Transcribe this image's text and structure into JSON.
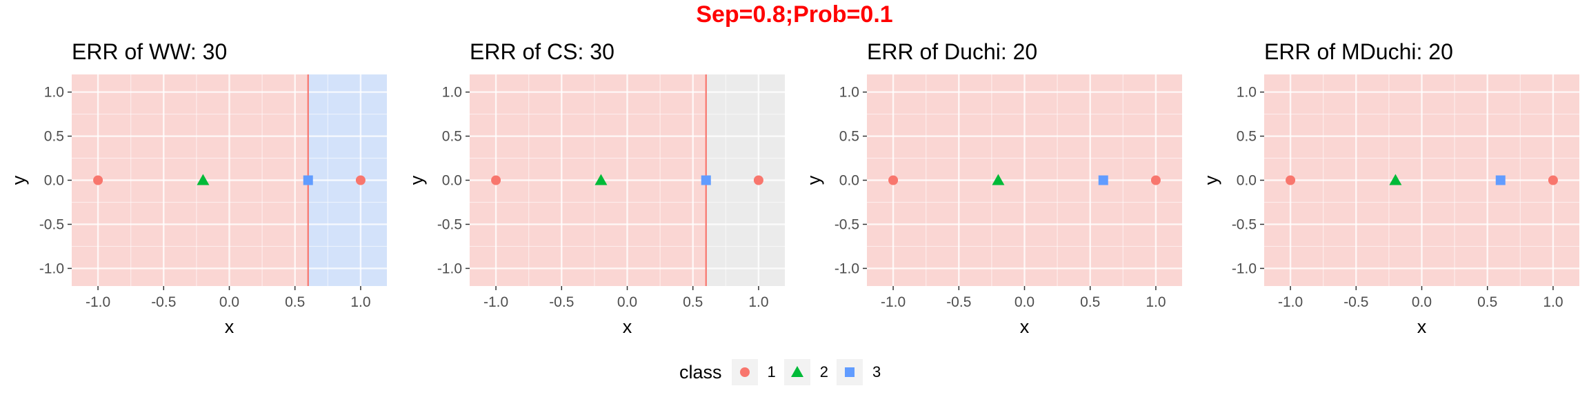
{
  "figure": {
    "title": "Sep=0.8;Prob=0.1"
  },
  "legend": {
    "title": "class",
    "items": [
      {
        "label": "1",
        "shape": "circle",
        "color": "#F8766D"
      },
      {
        "label": "2",
        "shape": "triangle",
        "color": "#00BA38"
      },
      {
        "label": "3",
        "shape": "square",
        "color": "#619CFF"
      }
    ]
  },
  "colors": {
    "class1_region": "#FAD6D3",
    "class3_region": "#D3E2FA",
    "panel_bg": "#EBEBEB",
    "boundary": "#F8766D"
  },
  "chart_data": [
    {
      "type": "scatter",
      "title": "ERR of WW: 30",
      "xlabel": "x",
      "ylabel": "y",
      "xlim": [
        -1.2,
        1.2
      ],
      "ylim": [
        -1.2,
        1.2
      ],
      "xticks": [
        -1.0,
        -0.5,
        0.0,
        0.5,
        1.0
      ],
      "xtick_labels": [
        "-1.0",
        "-0.5",
        "0.0",
        "0.5",
        "1.0"
      ],
      "yticks": [
        1.0,
        0.5,
        0.0,
        -0.5,
        -1.0
      ],
      "ytick_labels": [
        "1.0",
        "0.5",
        "0.0",
        "-0.5",
        "-1.0"
      ],
      "grid": true,
      "regions": [
        {
          "class": "1",
          "x": [
            -1.2,
            0.6
          ]
        },
        {
          "class": "3",
          "x": [
            0.6,
            1.2
          ]
        }
      ],
      "boundaries": [
        0.6
      ],
      "points": [
        {
          "x": -1.0,
          "y": 0.0,
          "class": "1"
        },
        {
          "x": -0.2,
          "y": 0.0,
          "class": "2"
        },
        {
          "x": 0.6,
          "y": 0.0,
          "class": "3"
        },
        {
          "x": 1.0,
          "y": 0.0,
          "class": "1"
        }
      ]
    },
    {
      "type": "scatter",
      "title": "ERR of CS: 30",
      "xlabel": "x",
      "ylabel": "y",
      "xlim": [
        -1.2,
        1.2
      ],
      "ylim": [
        -1.2,
        1.2
      ],
      "xticks": [
        -1.0,
        -0.5,
        0.0,
        0.5,
        1.0
      ],
      "xtick_labels": [
        "-1.0",
        "-0.5",
        "0.0",
        "0.5",
        "1.0"
      ],
      "yticks": [
        1.0,
        0.5,
        0.0,
        -0.5,
        -1.0
      ],
      "ytick_labels": [
        "1.0",
        "0.5",
        "0.0",
        "-0.5",
        "-1.0"
      ],
      "grid": true,
      "regions": [
        {
          "class": "1",
          "x": [
            -1.2,
            0.6
          ]
        }
      ],
      "boundaries": [
        0.6
      ],
      "points": [
        {
          "x": -1.0,
          "y": 0.0,
          "class": "1"
        },
        {
          "x": -0.2,
          "y": 0.0,
          "class": "2"
        },
        {
          "x": 0.6,
          "y": 0.0,
          "class": "3"
        },
        {
          "x": 1.0,
          "y": 0.0,
          "class": "1"
        }
      ]
    },
    {
      "type": "scatter",
      "title": "ERR of Duchi: 20",
      "xlabel": "x",
      "ylabel": "y",
      "xlim": [
        -1.2,
        1.2
      ],
      "ylim": [
        -1.2,
        1.2
      ],
      "xticks": [
        -1.0,
        -0.5,
        0.0,
        0.5,
        1.0
      ],
      "xtick_labels": [
        "-1.0",
        "-0.5",
        "0.0",
        "0.5",
        "1.0"
      ],
      "yticks": [
        1.0,
        0.5,
        0.0,
        -0.5,
        -1.0
      ],
      "ytick_labels": [
        "1.0",
        "0.5",
        "0.0",
        "-0.5",
        "-1.0"
      ],
      "grid": true,
      "regions": [
        {
          "class": "1",
          "x": [
            -1.2,
            1.2
          ]
        }
      ],
      "boundaries": [],
      "points": [
        {
          "x": -1.0,
          "y": 0.0,
          "class": "1"
        },
        {
          "x": -0.2,
          "y": 0.0,
          "class": "2"
        },
        {
          "x": 0.6,
          "y": 0.0,
          "class": "3"
        },
        {
          "x": 1.0,
          "y": 0.0,
          "class": "1"
        }
      ]
    },
    {
      "type": "scatter",
      "title": "ERR of MDuchi: 20",
      "xlabel": "x",
      "ylabel": "y",
      "xlim": [
        -1.2,
        1.2
      ],
      "ylim": [
        -1.2,
        1.2
      ],
      "xticks": [
        -1.0,
        -0.5,
        0.0,
        0.5,
        1.0
      ],
      "xtick_labels": [
        "-1.0",
        "-0.5",
        "0.0",
        "0.5",
        "1.0"
      ],
      "yticks": [
        1.0,
        0.5,
        0.0,
        -0.5,
        -1.0
      ],
      "ytick_labels": [
        "1.0",
        "0.5",
        "0.0",
        "-0.5",
        "-1.0"
      ],
      "grid": true,
      "regions": [
        {
          "class": "1",
          "x": [
            -1.2,
            1.2
          ]
        }
      ],
      "boundaries": [],
      "points": [
        {
          "x": -1.0,
          "y": 0.0,
          "class": "1"
        },
        {
          "x": -0.2,
          "y": 0.0,
          "class": "2"
        },
        {
          "x": 0.6,
          "y": 0.0,
          "class": "3"
        },
        {
          "x": 1.0,
          "y": 0.0,
          "class": "1"
        }
      ]
    }
  ]
}
